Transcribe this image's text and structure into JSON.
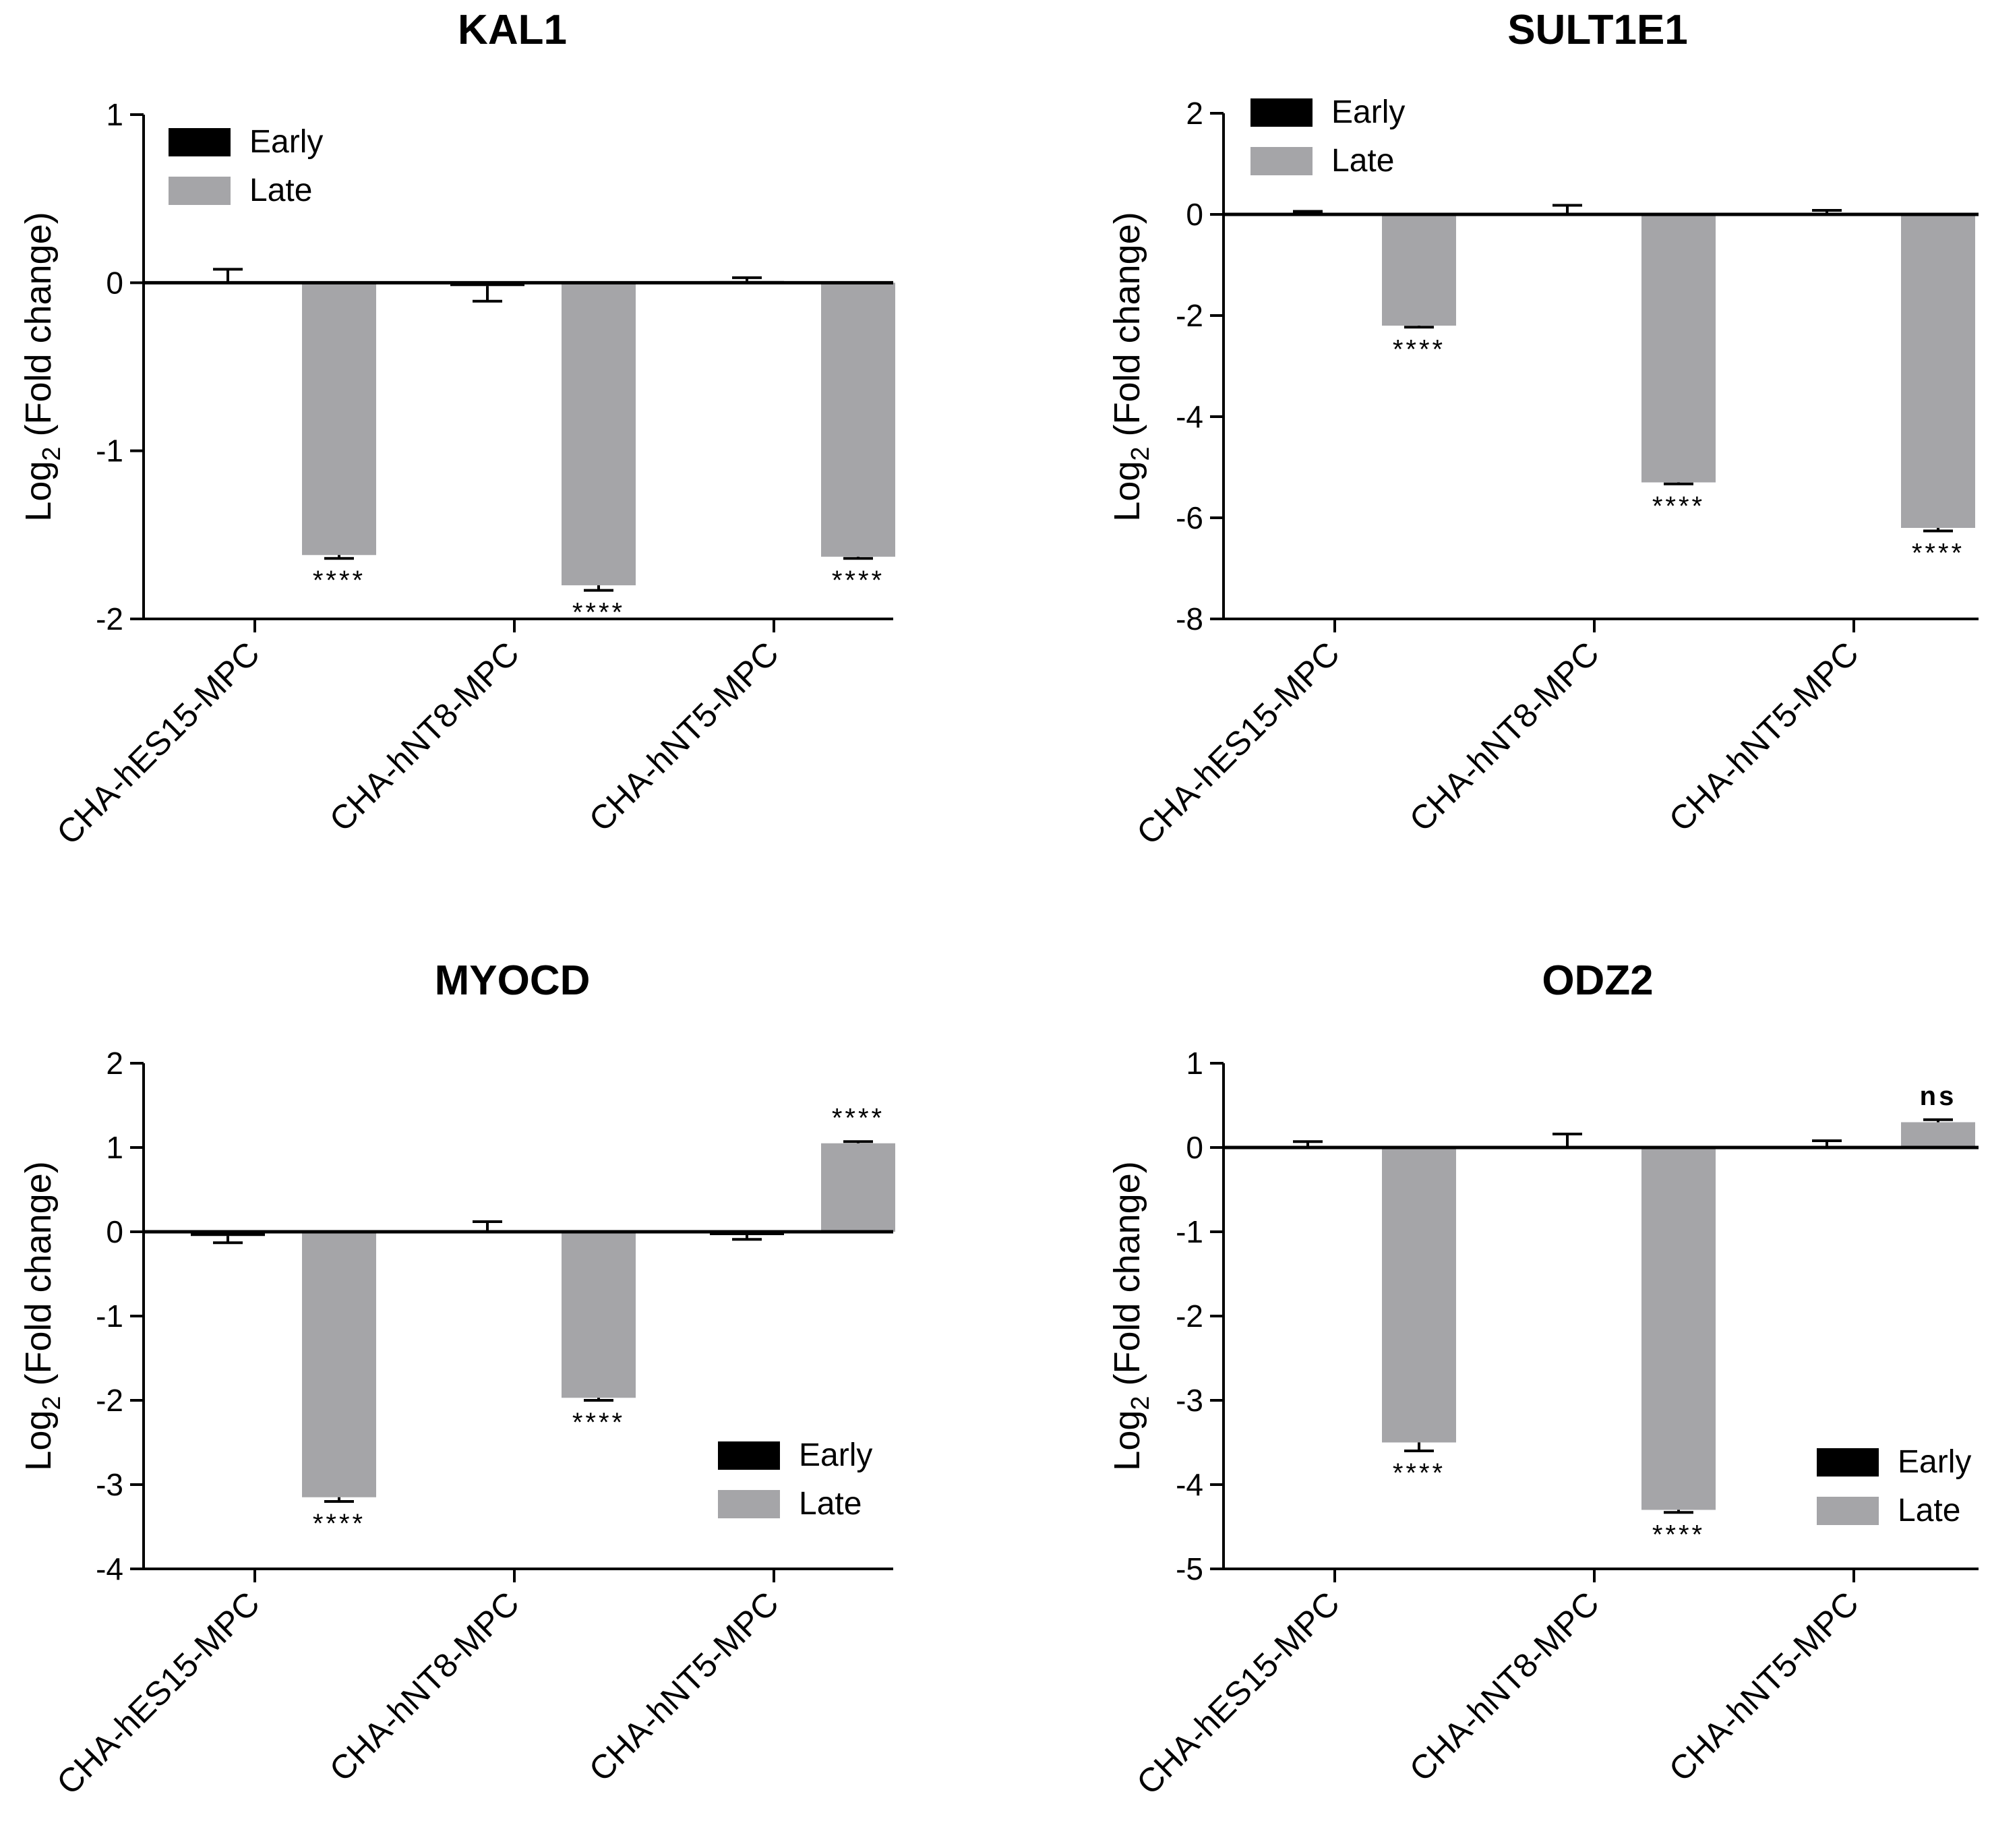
{
  "chart_data": [
    {
      "type": "bar",
      "title": "KAL1",
      "ylabel": "Log2 (Fold change)",
      "ylabel_base": "Log",
      "ylabel_sub": "2",
      "ylabel_rest": " (Fold change)",
      "ylim": [
        -2,
        1
      ],
      "yticks": [
        1,
        0,
        -1,
        -2
      ],
      "categories": [
        "CHA-hES15-MPC",
        "CHA-hNT8-MPC",
        "CHA-hNT5-MPC"
      ],
      "legend_position": "top-left",
      "series": [
        {
          "name": "Early",
          "color": "#000000",
          "values": [
            0,
            -0.02,
            0.01
          ],
          "errors": [
            0.08,
            0.09,
            0.02
          ]
        },
        {
          "name": "Late",
          "color": "#a5a5a8",
          "values": [
            -1.62,
            -1.8,
            -1.63
          ],
          "errors": [
            0.02,
            0.03,
            0.01
          ]
        }
      ],
      "annotations": [
        "****",
        "****",
        "****"
      ]
    },
    {
      "type": "bar",
      "title": "SULT1E1",
      "ylabel": "Log2 (Fold change)",
      "ylabel_base": "Log",
      "ylabel_sub": "2",
      "ylabel_rest": " (Fold change)",
      "ylim": [
        -8,
        2
      ],
      "yticks": [
        2,
        0,
        -2,
        -4,
        -6,
        -8
      ],
      "categories": [
        "CHA-hES15-MPC",
        "CHA-hNT8-MPC",
        "CHA-hNT5-MPC"
      ],
      "legend_position": "top-left",
      "series": [
        {
          "name": "Early",
          "color": "#000000",
          "values": [
            0.02,
            0,
            0.02
          ],
          "errors": [
            0.04,
            0.18,
            0.06
          ]
        },
        {
          "name": "Late",
          "color": "#a5a5a8",
          "values": [
            -2.2,
            -5.3,
            -6.2
          ],
          "errors": [
            0.03,
            0.03,
            0.06
          ]
        }
      ],
      "annotations": [
        "****",
        "****",
        "****"
      ]
    },
    {
      "type": "bar",
      "title": "MYOCD",
      "ylabel": "Log2 (Fold change)",
      "ylabel_base": "Log",
      "ylabel_sub": "2",
      "ylabel_rest": " (Fold change)",
      "ylim": [
        -4,
        2
      ],
      "yticks": [
        2,
        1,
        0,
        -1,
        -2,
        -3,
        -4
      ],
      "categories": [
        "CHA-hES15-MPC",
        "CHA-hNT8-MPC",
        "CHA-hNT5-MPC"
      ],
      "legend_position": "bottom-right",
      "series": [
        {
          "name": "Early",
          "color": "#000000",
          "values": [
            -0.05,
            0,
            -0.04
          ],
          "errors": [
            0.08,
            0.12,
            0.05
          ]
        },
        {
          "name": "Late",
          "color": "#a5a5a8",
          "values": [
            -3.15,
            -1.97,
            1.05
          ],
          "errors": [
            0.05,
            0.03,
            0.02
          ]
        }
      ],
      "annotations": [
        "****",
        "****",
        "****"
      ]
    },
    {
      "type": "bar",
      "title": "ODZ2",
      "ylabel": "Log2 (Fold change)",
      "ylabel_base": "Log",
      "ylabel_sub": "2",
      "ylabel_rest": " (Fold change)",
      "ylim": [
        -5,
        1
      ],
      "yticks": [
        1,
        0,
        -1,
        -2,
        -3,
        -4,
        -5
      ],
      "categories": [
        "CHA-hES15-MPC",
        "CHA-hNT8-MPC",
        "CHA-hNT5-MPC"
      ],
      "legend_position": "bottom-right",
      "series": [
        {
          "name": "Early",
          "color": "#000000",
          "values": [
            0.02,
            0,
            0.02
          ],
          "errors": [
            0.05,
            0.16,
            0.06
          ]
        },
        {
          "name": "Late",
          "color": "#a5a5a8",
          "values": [
            -3.5,
            -4.3,
            0.3
          ],
          "errors": [
            0.1,
            0.03,
            0.03
          ]
        }
      ],
      "annotations": [
        "****",
        "****",
        "ns"
      ]
    }
  ]
}
